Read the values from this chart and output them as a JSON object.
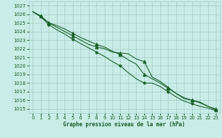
{
  "title": "Graphe pression niveau de la mer (hPa)",
  "background_color": "#c8ece6",
  "grid_color": "#a0ccc4",
  "line_color": "#1a5e28",
  "ylim": [
    1014.5,
    1027.5
  ],
  "xlim": [
    -0.5,
    23.5
  ],
  "yticks": [
    1015,
    1016,
    1017,
    1018,
    1019,
    1020,
    1021,
    1022,
    1023,
    1024,
    1025,
    1026,
    1027
  ],
  "xticks": [
    0,
    1,
    2,
    3,
    4,
    5,
    6,
    7,
    8,
    9,
    10,
    11,
    12,
    13,
    14,
    15,
    16,
    17,
    18,
    19,
    20,
    21,
    22,
    23
  ],
  "series1_x": [
    0,
    1,
    2,
    3,
    4,
    5,
    6,
    7,
    8,
    9,
    10,
    11,
    12,
    13,
    14,
    15,
    16,
    17,
    18,
    19,
    20,
    21,
    22,
    23
  ],
  "series1_y": [
    1026.3,
    1025.8,
    1025.0,
    1024.7,
    1024.3,
    1023.8,
    1023.3,
    1022.9,
    1022.5,
    1022.2,
    1021.7,
    1021.3,
    1020.7,
    1020.2,
    1019.0,
    1018.5,
    1018.0,
    1017.4,
    1016.8,
    1016.3,
    1016.0,
    1015.7,
    1015.3,
    1015.0
  ],
  "series2_x": [
    0,
    1,
    2,
    3,
    4,
    5,
    6,
    7,
    8,
    9,
    10,
    11,
    12,
    13,
    14,
    15,
    16,
    17,
    18,
    19,
    20,
    21,
    22,
    23
  ],
  "series2_y": [
    1026.3,
    1025.8,
    1025.0,
    1024.5,
    1024.0,
    1023.5,
    1023.0,
    1022.5,
    1022.2,
    1022.0,
    1021.6,
    1021.5,
    1021.4,
    1020.8,
    1020.5,
    1018.7,
    1018.2,
    1017.5,
    1016.8,
    1016.2,
    1016.0,
    1015.8,
    1015.3,
    1014.9
  ],
  "series3_x": [
    0,
    1,
    2,
    3,
    4,
    5,
    6,
    7,
    8,
    9,
    10,
    11,
    12,
    13,
    14,
    15,
    16,
    17,
    18,
    19,
    20,
    21,
    22,
    23
  ],
  "series3_y": [
    1026.3,
    1025.7,
    1024.8,
    1024.2,
    1023.7,
    1023.1,
    1022.6,
    1022.1,
    1021.6,
    1021.1,
    1020.5,
    1020.0,
    1019.2,
    1018.5,
    1018.0,
    1018.0,
    1017.6,
    1017.0,
    1016.4,
    1015.9,
    1015.6,
    1015.3,
    1015.1,
    1014.8
  ],
  "mk1_x": [
    1,
    2,
    5,
    8,
    11,
    14,
    17,
    20,
    23
  ],
  "mk1_y": [
    1025.8,
    1025.0,
    1023.8,
    1022.5,
    1021.3,
    1019.0,
    1017.4,
    1016.0,
    1015.0
  ],
  "mk2_x": [
    1,
    2,
    5,
    8,
    11,
    14,
    17,
    20,
    23
  ],
  "mk2_y": [
    1025.8,
    1025.0,
    1023.5,
    1022.2,
    1021.5,
    1020.5,
    1017.5,
    1016.0,
    1014.9
  ],
  "mk3_x": [
    1,
    2,
    5,
    8,
    11,
    14,
    17,
    20,
    23
  ],
  "mk3_y": [
    1025.7,
    1024.8,
    1023.1,
    1021.6,
    1020.0,
    1018.0,
    1017.0,
    1015.6,
    1014.8
  ]
}
